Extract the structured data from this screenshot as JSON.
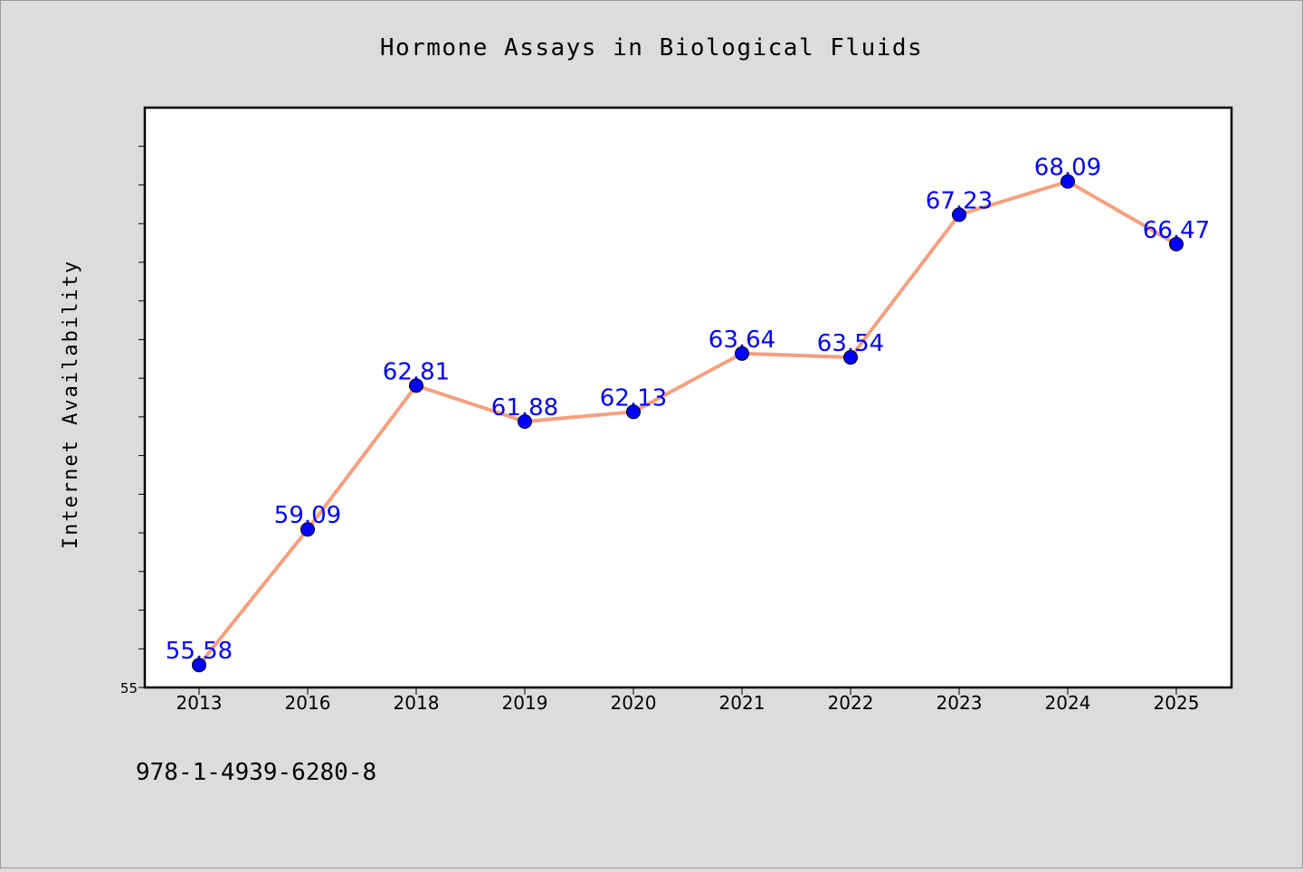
{
  "chart_data": {
    "type": "line",
    "title": "Hormone Assays in Biological Fluids",
    "xlabel": "",
    "ylabel": "Internet Availability",
    "categories": [
      "2013",
      "2016",
      "2018",
      "2019",
      "2020",
      "2021",
      "2022",
      "2023",
      "2024",
      "2025"
    ],
    "series": [
      {
        "values": [
          55.58,
          59.09,
          62.81,
          61.88,
          62.13,
          63.64,
          63.54,
          67.23,
          68.09,
          66.47
        ],
        "labels": [
          "55.58",
          "59.09",
          "62.81",
          "61.88",
          "62.13",
          "63.64",
          "63.54",
          "67.23",
          "68.09",
          "66.47"
        ],
        "line_color": "#f4a07f",
        "marker_color": "#0000ff"
      }
    ],
    "ylim": [
      55,
      70
    ],
    "y_tick_labels": [
      "55"
    ],
    "grid": false,
    "legend": "none",
    "footer_text": "978-1-4939-6280-8",
    "colors": {
      "page_background": "#dcdcdc",
      "plot_background": "#ffffff",
      "label_color": "#0000ff"
    }
  }
}
